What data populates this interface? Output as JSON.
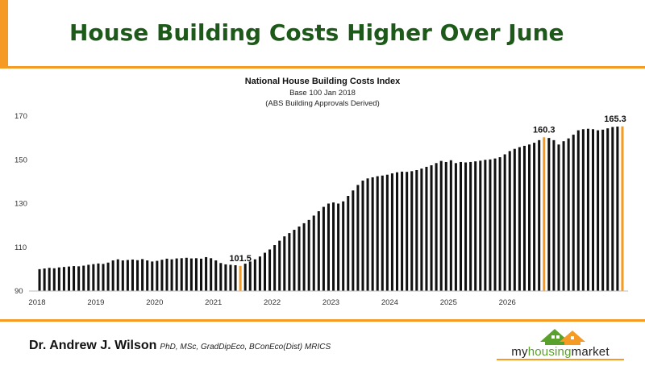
{
  "header": {
    "title": "House Building Costs Higher Over June"
  },
  "footer": {
    "author": "Dr. Andrew J. Wilson",
    "credentials": "PhD, MSc, GradDipEco, BConEco(Dist) MRICS",
    "logo_text_prefix": "my",
    "logo_text_highlight": "housing",
    "logo_text_suffix": "market"
  },
  "colors": {
    "title_green": "#1d5a1a",
    "accent_orange": "#f59a23",
    "bar_black": "#111111",
    "logo_green": "#5aa02c"
  },
  "chart_data": {
    "type": "bar",
    "title": "National House Building Costs Index",
    "subtitle": "Base 100 Jan 2018",
    "subtitle2": "(ABS Building Approvals Derived)",
    "xlabel": "",
    "ylabel": "",
    "ylim": [
      90,
      170
    ],
    "yticks": [
      90,
      110,
      130,
      150,
      170
    ],
    "xticks": [
      "2018",
      "2019",
      "2020",
      "2021",
      "2022",
      "2023",
      "2024",
      "2025",
      "2026"
    ],
    "grid": false,
    "start": "Jan 2018",
    "frequency": "monthly",
    "values": [
      100.0,
      100.3,
      100.6,
      100.4,
      100.8,
      101.0,
      101.2,
      101.4,
      101.3,
      101.6,
      102.0,
      102.3,
      102.6,
      102.4,
      103.0,
      104.0,
      104.5,
      104.0,
      104.2,
      104.4,
      104.1,
      104.6,
      104.0,
      103.5,
      103.8,
      104.3,
      104.8,
      104.5,
      104.9,
      105.0,
      105.2,
      104.9,
      105.0,
      104.8,
      105.5,
      105.0,
      104.0,
      102.8,
      102.2,
      102.0,
      101.8,
      101.5,
      102.5,
      103.5,
      104.5,
      105.8,
      107.5,
      109.0,
      111.0,
      113.0,
      115.0,
      116.5,
      118.0,
      119.5,
      121.0,
      122.5,
      124.5,
      126.5,
      128.5,
      130.0,
      130.5,
      130.0,
      131.0,
      133.5,
      136.0,
      138.5,
      140.5,
      141.5,
      142.0,
      142.5,
      142.8,
      143.2,
      143.8,
      144.3,
      144.6,
      144.5,
      144.8,
      145.3,
      146.0,
      146.8,
      147.5,
      148.5,
      149.5,
      149.0,
      149.8,
      148.5,
      149.0,
      148.8,
      149.0,
      149.3,
      149.6,
      150.0,
      150.2,
      150.6,
      151.2,
      152.5,
      154.0,
      155.0,
      155.8,
      156.4,
      157.0,
      157.8,
      159.0,
      160.3,
      160.0,
      159.0,
      157.0,
      158.5,
      159.8,
      161.5,
      163.5,
      164.0,
      164.2,
      164.0,
      163.5,
      163.8,
      164.4,
      165.0,
      165.2,
      165.3
    ],
    "highlighted": [
      {
        "index": 41,
        "label": "101.5"
      },
      {
        "index": 103,
        "label": "160.3"
      },
      {
        "index": 119,
        "label": "165.3"
      }
    ]
  }
}
